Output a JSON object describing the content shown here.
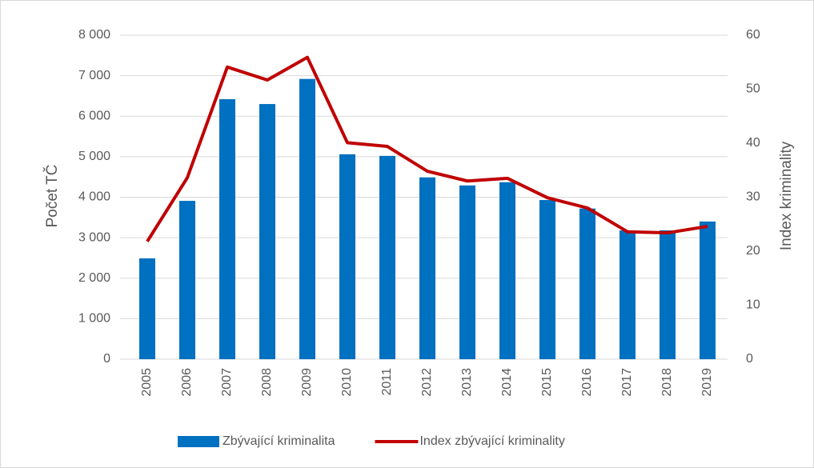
{
  "chart_data": {
    "type": "bar",
    "categories": [
      "2005",
      "2006",
      "2007",
      "2008",
      "2009",
      "2010",
      "2011",
      "2012",
      "2013",
      "2014",
      "2015",
      "2016",
      "2017",
      "2018",
      "2019"
    ],
    "series": [
      {
        "name": "Zbývající kriminalita",
        "type": "bar",
        "color": "#0070c0",
        "values": [
          2490,
          3910,
          6420,
          6300,
          6920,
          5060,
          5020,
          4490,
          4290,
          4370,
          3930,
          3720,
          3180,
          3180,
          3400
        ]
      },
      {
        "name": "Index zbývající kriminality",
        "type": "line",
        "axis": "y2",
        "color": "#c00000",
        "values": [
          21.8,
          33.6,
          54.1,
          51.7,
          55.9,
          40.1,
          39.4,
          34.8,
          33.0,
          33.5,
          29.9,
          28.0,
          23.6,
          23.4,
          24.6
        ]
      }
    ],
    "ylabel": "Počet TČ",
    "y2label": "Index kriminality",
    "ylim": [
      0,
      8000
    ],
    "yticks": [
      0,
      {
        "value": 1000,
        "label": "1 000"
      },
      {
        "value": 2000,
        "label": "2 000"
      },
      {
        "value": 3000,
        "label": "3 000"
      },
      {
        "value": 4000,
        "label": "4 000"
      },
      {
        "value": 5000,
        "label": "5 000"
      },
      {
        "value": 6000,
        "label": "6 000"
      },
      {
        "value": 7000,
        "label": "7 000"
      },
      {
        "value": 8000,
        "label": "8 000"
      }
    ],
    "y2lim": [
      0,
      60
    ],
    "y2ticks": [
      0,
      10,
      20,
      30,
      40,
      50,
      60
    ],
    "grid": true,
    "legend": "bottom"
  }
}
